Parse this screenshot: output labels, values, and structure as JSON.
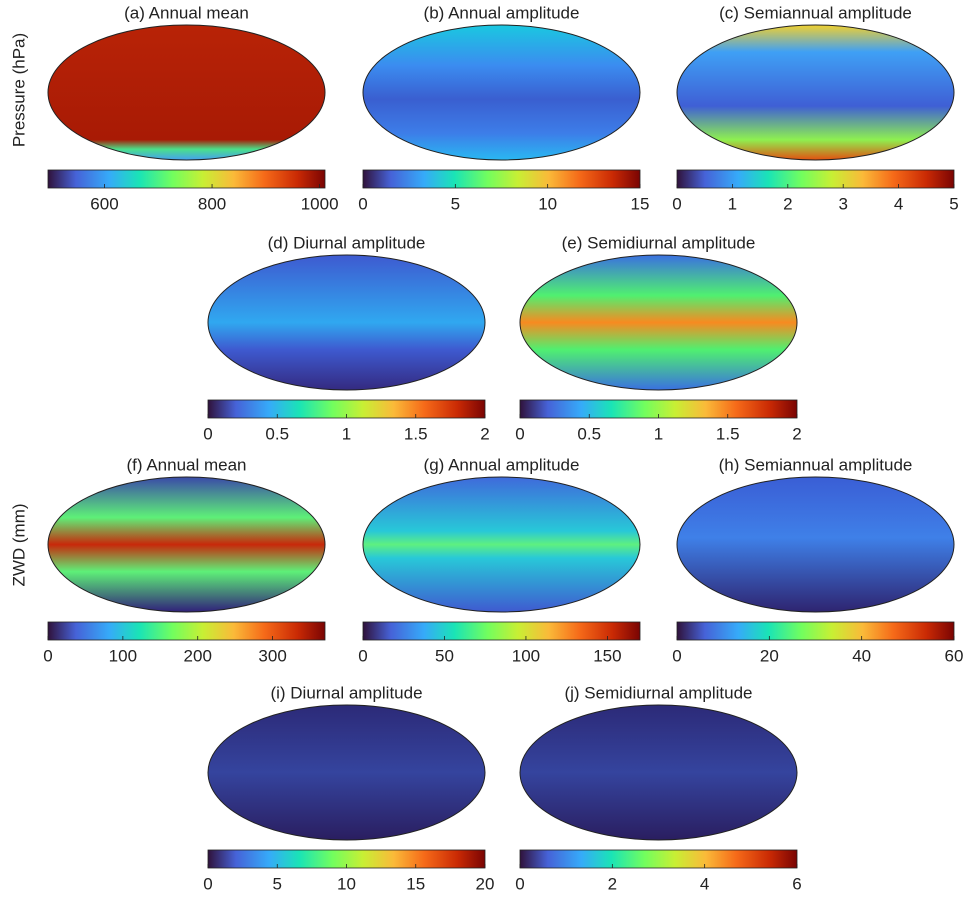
{
  "row_labels": [
    "Pressure (hPa)",
    "ZWD (mm)"
  ],
  "panels": [
    {
      "title": "(a) Annual mean",
      "range": [
        495,
        1010
      ],
      "ticks": [
        600,
        800,
        1000
      ]
    },
    {
      "title": "(b) Annual amplitude",
      "range": [
        0,
        15
      ],
      "ticks": [
        0,
        5,
        10,
        15
      ]
    },
    {
      "title": "(c) Semiannual amplitude",
      "range": [
        0,
        5
      ],
      "ticks": [
        0,
        1,
        2,
        3,
        4,
        5
      ]
    },
    {
      "title": "(d) Diurnal amplitude",
      "range": [
        0,
        2
      ],
      "ticks": [
        0,
        0.5,
        1,
        1.5,
        2
      ]
    },
    {
      "title": "(e) Semidiurnal amplitude",
      "range": [
        0,
        2
      ],
      "ticks": [
        0,
        0.5,
        1,
        1.5,
        2
      ]
    },
    {
      "title": "(f) Annual mean",
      "range": [
        0,
        370
      ],
      "ticks": [
        0,
        100,
        200,
        300
      ]
    },
    {
      "title": "(g) Annual amplitude",
      "range": [
        0,
        170
      ],
      "ticks": [
        0,
        50,
        100,
        150
      ]
    },
    {
      "title": "(h) Semiannual amplitude",
      "range": [
        0,
        60
      ],
      "ticks": [
        0,
        20,
        40,
        60
      ]
    },
    {
      "title": "(i) Diurnal amplitude",
      "range": [
        0,
        20
      ],
      "ticks": [
        0,
        5,
        10,
        15,
        20
      ]
    },
    {
      "title": "(j) Semidiurnal amplitude",
      "range": [
        0,
        6
      ],
      "ticks": [
        0,
        2,
        4,
        6
      ]
    }
  ]
}
